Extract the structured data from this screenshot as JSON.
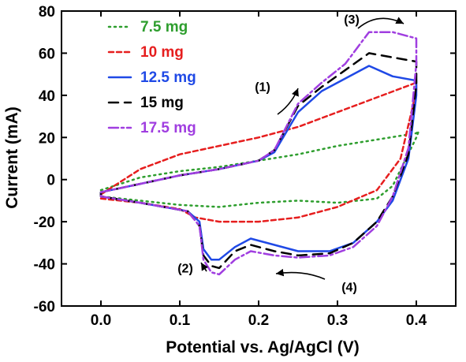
{
  "chart_data": {
    "type": "line",
    "title": "",
    "xlabel": "Potential vs. Ag/AgCl (V)",
    "ylabel": "Current (mA)",
    "xlim": [
      -0.05,
      0.45
    ],
    "ylim": [
      -60,
      80
    ],
    "xticks": [
      "0.0",
      "0.1",
      "0.2",
      "0.3",
      "0.4"
    ],
    "xtick_values": [
      0.0,
      0.1,
      0.2,
      0.3,
      0.4
    ],
    "yticks": [
      "-60",
      "-40",
      "-20",
      "0",
      "20",
      "40",
      "60",
      "80"
    ],
    "ytick_values": [
      -60,
      -40,
      -20,
      0,
      20,
      40,
      60,
      80
    ],
    "grid": false,
    "legend_position": "top-left",
    "series": [
      {
        "name": "7.5 mg",
        "color": "#2e9e2e",
        "style": "dotted",
        "points": [
          [
            0.0,
            -5
          ],
          [
            0.05,
            1
          ],
          [
            0.1,
            4
          ],
          [
            0.15,
            6
          ],
          [
            0.2,
            9
          ],
          [
            0.25,
            12
          ],
          [
            0.3,
            16
          ],
          [
            0.35,
            19
          ],
          [
            0.4,
            22
          ],
          [
            0.403,
            23
          ],
          [
            0.4,
            20
          ],
          [
            0.37,
            -3
          ],
          [
            0.35,
            -9
          ],
          [
            0.3,
            -11
          ],
          [
            0.25,
            -10
          ],
          [
            0.2,
            -11
          ],
          [
            0.15,
            -13
          ],
          [
            0.1,
            -12
          ],
          [
            0.05,
            -10
          ],
          [
            0.0,
            -8
          ],
          [
            0.0,
            -5
          ]
        ]
      },
      {
        "name": "10 mg",
        "color": "#e61e1e",
        "style": "short-dash",
        "points": [
          [
            0.0,
            -7
          ],
          [
            0.05,
            5
          ],
          [
            0.1,
            12
          ],
          [
            0.15,
            16
          ],
          [
            0.2,
            20
          ],
          [
            0.25,
            25
          ],
          [
            0.3,
            32
          ],
          [
            0.35,
            39
          ],
          [
            0.4,
            46
          ],
          [
            0.4,
            42
          ],
          [
            0.38,
            10
          ],
          [
            0.35,
            -5
          ],
          [
            0.3,
            -13
          ],
          [
            0.25,
            -18
          ],
          [
            0.2,
            -20
          ],
          [
            0.15,
            -20
          ],
          [
            0.12,
            -18
          ],
          [
            0.1,
            -14
          ],
          [
            0.05,
            -11
          ],
          [
            0.0,
            -9
          ],
          [
            0.0,
            -7
          ]
        ]
      },
      {
        "name": "12.5 mg",
        "color": "#1f49e6",
        "style": "solid",
        "points": [
          [
            0.0,
            -6
          ],
          [
            0.05,
            -2
          ],
          [
            0.1,
            2
          ],
          [
            0.15,
            5
          ],
          [
            0.2,
            9
          ],
          [
            0.22,
            13
          ],
          [
            0.25,
            32
          ],
          [
            0.28,
            42
          ],
          [
            0.31,
            48
          ],
          [
            0.34,
            54
          ],
          [
            0.37,
            49
          ],
          [
            0.4,
            47
          ],
          [
            0.4,
            40
          ],
          [
            0.39,
            10
          ],
          [
            0.37,
            -10
          ],
          [
            0.35,
            -20
          ],
          [
            0.32,
            -30
          ],
          [
            0.29,
            -34
          ],
          [
            0.25,
            -34
          ],
          [
            0.22,
            -31
          ],
          [
            0.19,
            -28
          ],
          [
            0.17,
            -32
          ],
          [
            0.15,
            -38
          ],
          [
            0.14,
            -38
          ],
          [
            0.13,
            -33
          ],
          [
            0.125,
            -20
          ],
          [
            0.11,
            -15
          ],
          [
            0.05,
            -11
          ],
          [
            0.0,
            -8
          ],
          [
            0.0,
            -6
          ]
        ]
      },
      {
        "name": "15 mg",
        "color": "#000000",
        "style": "long-dash",
        "points": [
          [
            0.0,
            -6
          ],
          [
            0.05,
            -2
          ],
          [
            0.1,
            2
          ],
          [
            0.15,
            5
          ],
          [
            0.2,
            9
          ],
          [
            0.22,
            14
          ],
          [
            0.25,
            35
          ],
          [
            0.28,
            44
          ],
          [
            0.31,
            52
          ],
          [
            0.34,
            60
          ],
          [
            0.37,
            58
          ],
          [
            0.4,
            56
          ],
          [
            0.4,
            45
          ],
          [
            0.39,
            12
          ],
          [
            0.37,
            -8
          ],
          [
            0.35,
            -20
          ],
          [
            0.32,
            -30
          ],
          [
            0.29,
            -35
          ],
          [
            0.25,
            -36
          ],
          [
            0.22,
            -34
          ],
          [
            0.19,
            -31
          ],
          [
            0.17,
            -34
          ],
          [
            0.15,
            -42
          ],
          [
            0.14,
            -41
          ],
          [
            0.13,
            -36
          ],
          [
            0.125,
            -22
          ],
          [
            0.11,
            -15
          ],
          [
            0.05,
            -11
          ],
          [
            0.0,
            -8
          ],
          [
            0.0,
            -6
          ]
        ]
      },
      {
        "name": "17.5 mg",
        "color": "#a03ee0",
        "style": "dash-dot",
        "points": [
          [
            0.0,
            -6
          ],
          [
            0.05,
            -2
          ],
          [
            0.1,
            2
          ],
          [
            0.15,
            5
          ],
          [
            0.2,
            9
          ],
          [
            0.22,
            14
          ],
          [
            0.25,
            36
          ],
          [
            0.28,
            46
          ],
          [
            0.31,
            55
          ],
          [
            0.34,
            70
          ],
          [
            0.37,
            70
          ],
          [
            0.4,
            67
          ],
          [
            0.4,
            55
          ],
          [
            0.39,
            15
          ],
          [
            0.37,
            -8
          ],
          [
            0.35,
            -22
          ],
          [
            0.32,
            -32
          ],
          [
            0.29,
            -36
          ],
          [
            0.25,
            -37
          ],
          [
            0.22,
            -36
          ],
          [
            0.19,
            -34
          ],
          [
            0.17,
            -38
          ],
          [
            0.15,
            -45
          ],
          [
            0.14,
            -44
          ],
          [
            0.13,
            -38
          ],
          [
            0.125,
            -22
          ],
          [
            0.11,
            -15
          ],
          [
            0.05,
            -11
          ],
          [
            0.0,
            -8
          ],
          [
            0.0,
            -6
          ]
        ]
      }
    ],
    "annotations": [
      {
        "text": "(1)",
        "x": 0.205,
        "y": 42
      },
      {
        "text": "(2)",
        "x": 0.107,
        "y": -44
      },
      {
        "text": "(3)",
        "x": 0.318,
        "y": 74
      },
      {
        "text": "(4)",
        "x": 0.315,
        "y": -53
      }
    ]
  }
}
